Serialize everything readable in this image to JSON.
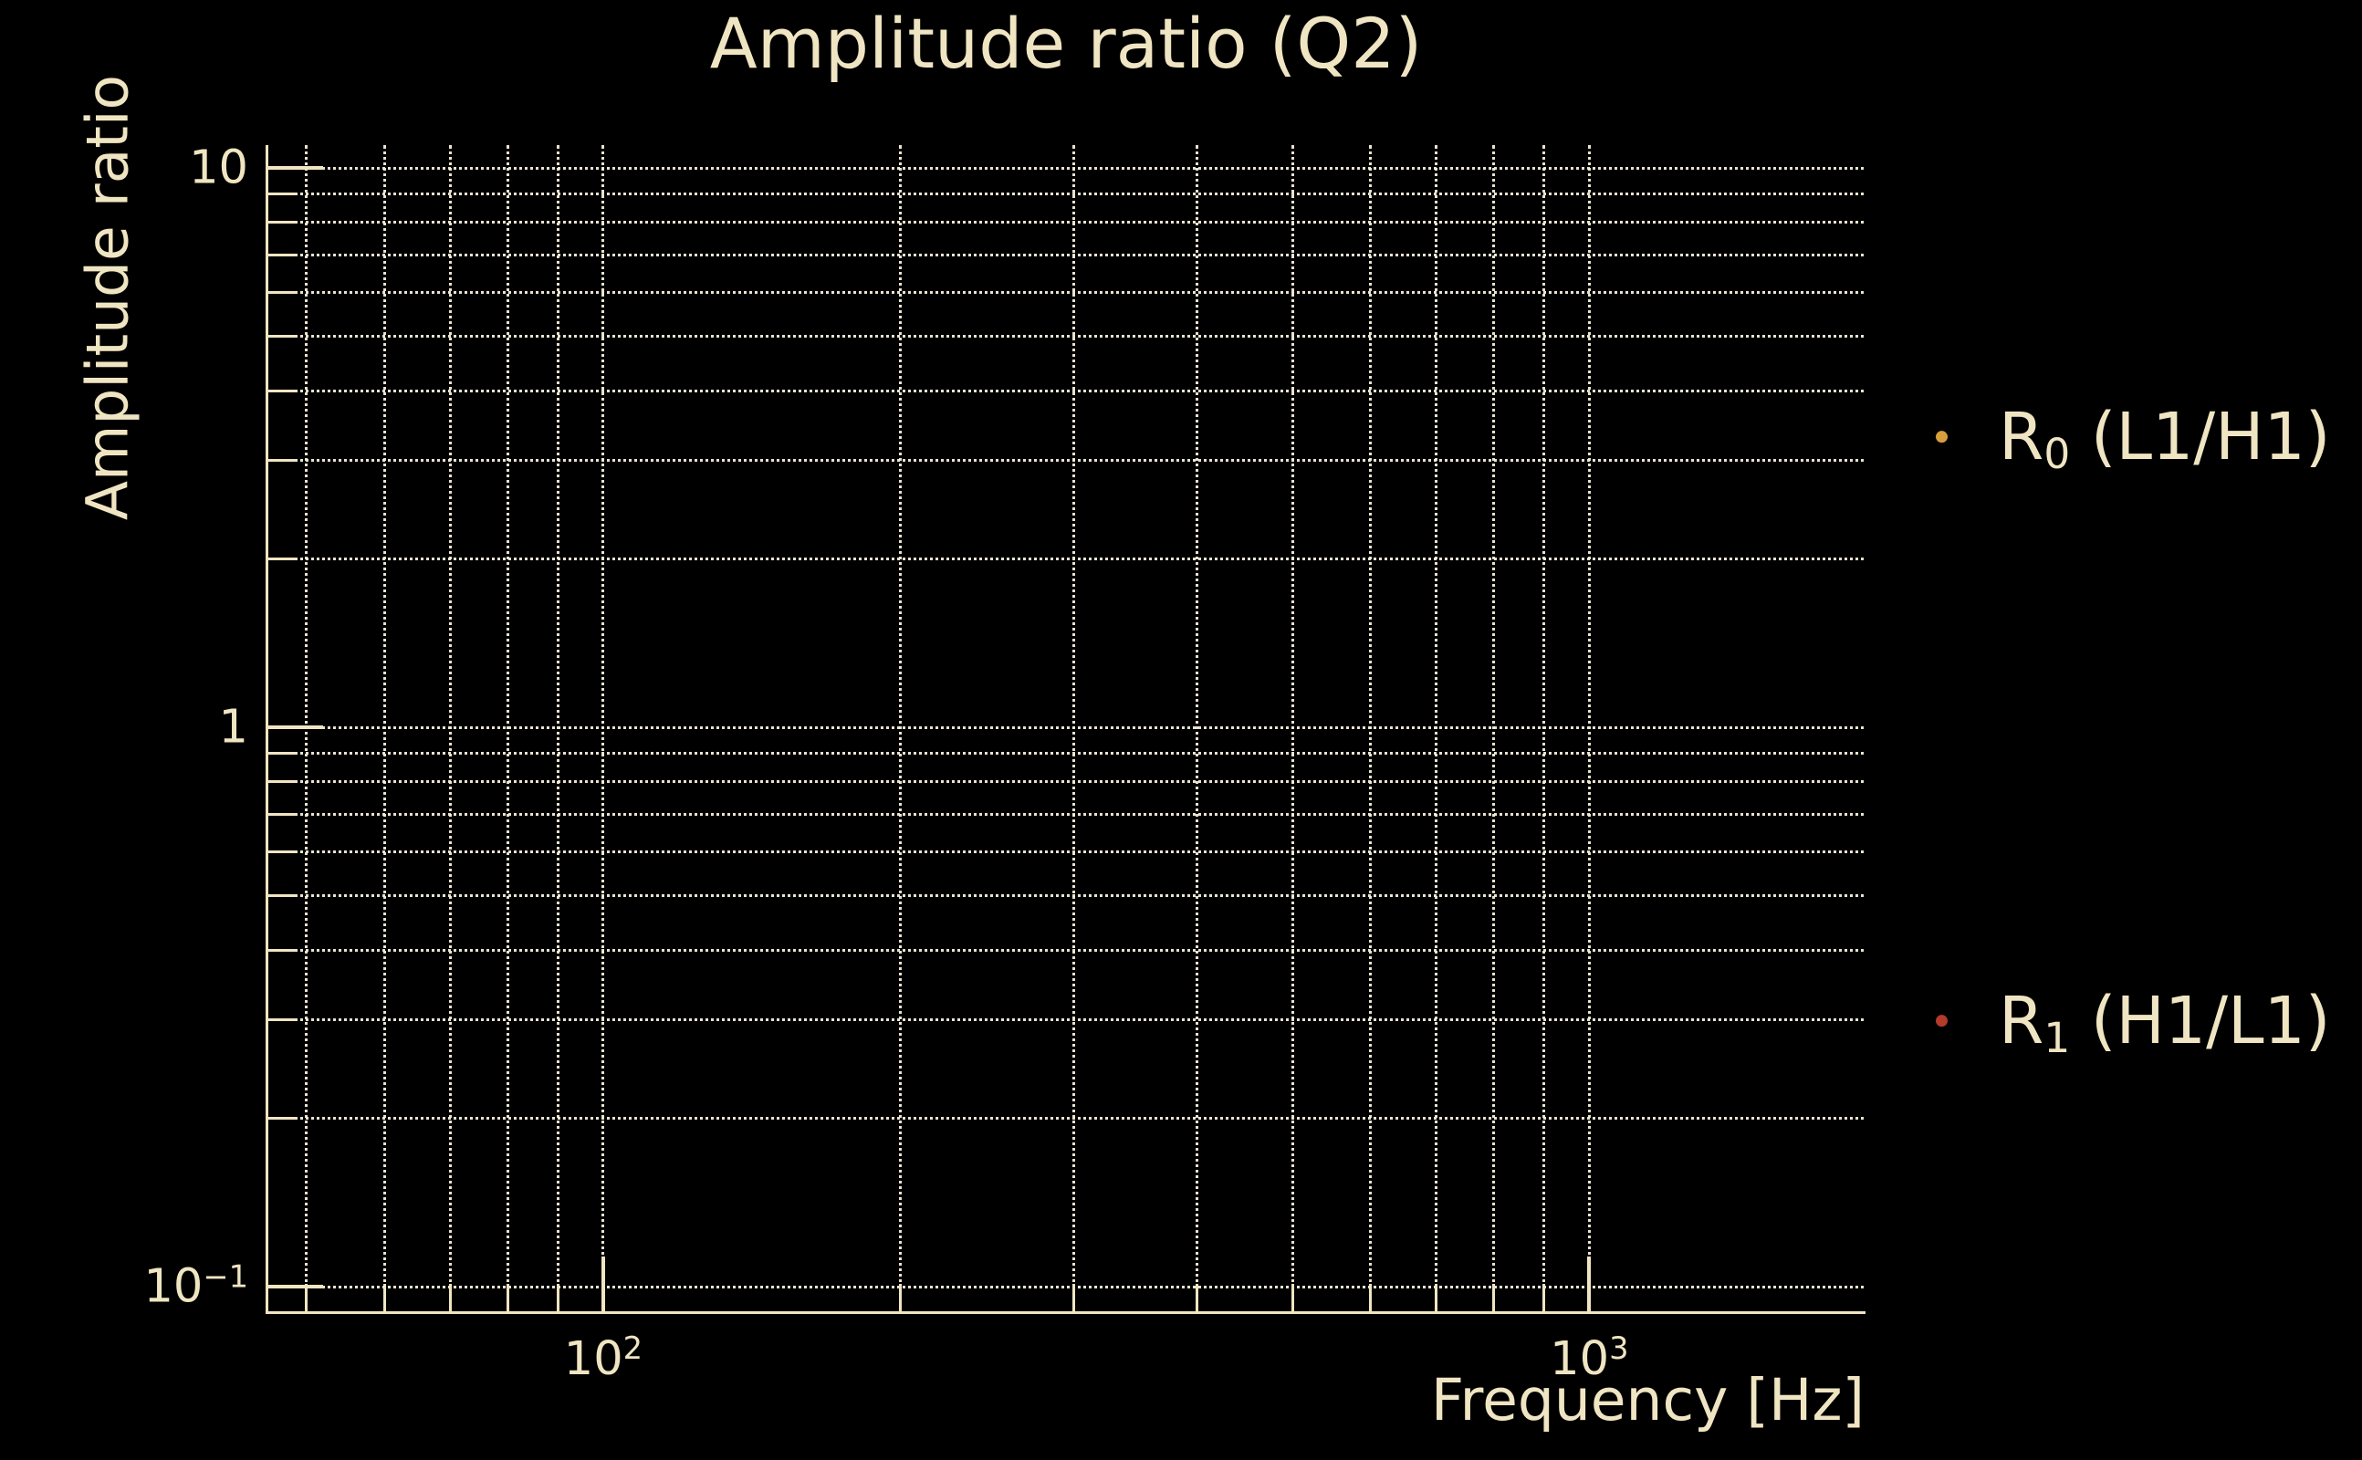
{
  "title": "Amplitude ratio (Q2)",
  "colors": {
    "background": "#000000",
    "text": "#f0e5c2",
    "grid": "#f5efdd",
    "spine": "#f0e5c2",
    "series0_marker": "#d69e3d",
    "series1_marker": "#b43a2b"
  },
  "axis": {
    "xlabel": "Frequency [Hz]",
    "ylabel": "Amplitude ratio",
    "y_tick_labels": [
      {
        "value": 10,
        "base": "10",
        "exp": ""
      },
      {
        "value": 1,
        "base": "1",
        "exp": ""
      },
      {
        "value": 0.1,
        "base": "10",
        "exp": "−1"
      }
    ],
    "x_tick_labels": [
      {
        "value": 100,
        "base": "10",
        "exp": "2"
      },
      {
        "value": 1000,
        "base": "10",
        "exp": "3"
      }
    ]
  },
  "legend": {
    "entries": [
      {
        "main": "R",
        "sub": "0",
        "rest": " (L1/H1)",
        "marker_color": "#d69e3d"
      },
      {
        "main": "R",
        "sub": "1",
        "rest": " (H1/L1)",
        "marker_color": "#b43a2b"
      }
    ]
  },
  "chart_data": {
    "type": "scatter",
    "title": "Amplitude ratio (Q2)",
    "xlabel": "Frequency [Hz]",
    "ylabel": "Amplitude ratio",
    "xscale": "log",
    "yscale": "log",
    "xlim": [
      45.6,
      1900
    ],
    "ylim": [
      0.09,
      11.0
    ],
    "grid": "major and minor, dotted, both axes",
    "legend_position": "outside right",
    "x_major_gridlines": [
      100,
      1000
    ],
    "x_minor_gridlines": [
      50,
      60,
      70,
      80,
      90,
      200,
      300,
      400,
      500,
      600,
      700,
      800,
      900
    ],
    "y_major_gridlines": [
      0.1,
      1,
      10
    ],
    "y_minor_gridlines": [
      0.2,
      0.3,
      0.4,
      0.5,
      0.6,
      0.7,
      0.8,
      0.9,
      2,
      3,
      4,
      5,
      6,
      7,
      8,
      9
    ],
    "series": [
      {
        "name": "R_0 (L1/H1)",
        "marker": "dot",
        "color": "#d69e3d",
        "points": []
      },
      {
        "name": "R_1 (H1/L1)",
        "marker": "dot",
        "color": "#b43a2b",
        "points": []
      }
    ]
  }
}
